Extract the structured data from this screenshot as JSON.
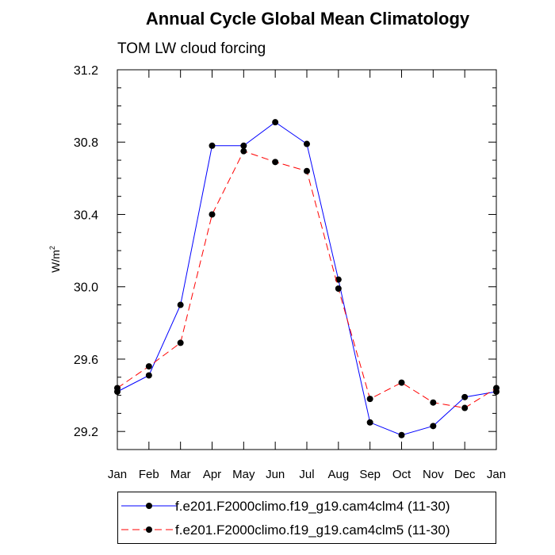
{
  "chart_data": {
    "type": "line",
    "title": "Annual Cycle Global Mean Climatology",
    "subtitle": "TOM LW cloud forcing",
    "ylabel_base": "W/m",
    "ylabel_sup": "2",
    "xlabel": "",
    "categories": [
      "Jan",
      "Feb",
      "Mar",
      "Apr",
      "May",
      "Jun",
      "Jul",
      "Aug",
      "Sep",
      "Oct",
      "Nov",
      "Dec",
      "Jan"
    ],
    "ylim": [
      29.1,
      31.2
    ],
    "yticks": [
      29.2,
      29.6,
      30.0,
      30.4,
      30.8,
      31.2
    ],
    "ytick_labels": [
      "29.2",
      "29.6",
      "30.0",
      "30.4",
      "30.8",
      "31.2"
    ],
    "series": [
      {
        "name": "f.e201.F2000climo.f19_g19.cam4clm4 (11-30)",
        "color": "#0000ff",
        "dash": "solid",
        "values": [
          29.42,
          29.51,
          29.9,
          30.78,
          30.78,
          30.91,
          30.79,
          30.04,
          29.25,
          29.18,
          29.23,
          29.39,
          29.42
        ]
      },
      {
        "name": "f.e201.F2000climo.f19_g19.cam4clm5 (11-30)",
        "color": "#ff0000",
        "dash": "dashed",
        "values": [
          29.44,
          29.56,
          29.69,
          30.4,
          30.75,
          30.69,
          30.64,
          29.99,
          29.38,
          29.47,
          29.36,
          29.33,
          29.44
        ]
      }
    ],
    "marker_color": "#000000",
    "legend_position": "bottom"
  }
}
